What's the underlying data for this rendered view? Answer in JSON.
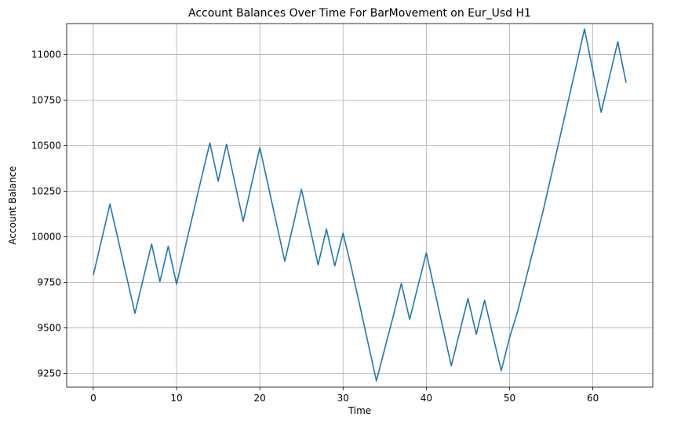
{
  "chart_data": {
    "type": "line",
    "title": "Account Balances Over Time For BarMovement on Eur_Usd H1",
    "xlabel": "Time",
    "ylabel": "Account Balance",
    "xlim": [
      -3.2,
      67.2
    ],
    "ylim": [
      9175,
      11170
    ],
    "xticks": [
      0,
      10,
      20,
      30,
      40,
      50,
      60
    ],
    "yticks": [
      9250,
      9500,
      9750,
      10000,
      10250,
      10500,
      10750,
      11000
    ],
    "grid": true,
    "line_color": "#1f77b4",
    "series": [
      {
        "x": [
          0,
          1,
          2,
          3,
          4,
          5,
          6,
          7,
          8,
          9,
          10,
          11,
          12,
          13,
          14,
          15,
          16,
          17,
          18,
          19,
          20,
          21,
          22,
          23,
          24,
          25,
          26,
          27,
          28,
          29,
          30,
          31,
          32,
          33,
          34,
          35,
          36,
          37,
          38,
          39,
          40,
          41,
          42,
          43,
          44,
          45,
          46,
          47,
          48,
          49,
          50,
          51,
          52,
          53,
          54,
          55,
          56,
          57,
          58,
          59,
          60,
          61,
          62,
          63,
          64
        ],
        "values": [
          9790,
          9985,
          10180,
          9980,
          9780,
          9580,
          9770,
          9960,
          9755,
          9948,
          9740,
          9935,
          10130,
          10325,
          10515,
          10305,
          10508,
          10297,
          10085,
          10287,
          10489,
          10282,
          10074,
          9866,
          10063,
          10261,
          10054,
          9846,
          10043,
          9840,
          10020,
          9830,
          9625,
          9418,
          9210,
          9385,
          9560,
          9744,
          9547,
          9730,
          9912,
          9705,
          9498,
          9292,
          9476,
          9662,
          9465,
          9652,
          9458,
          9265,
          9446,
          9596,
          9776,
          9956,
          10136,
          10336,
          10536,
          10736,
          10936,
          11140,
          10912,
          10683,
          10877,
          11070,
          10845
        ]
      }
    ]
  }
}
